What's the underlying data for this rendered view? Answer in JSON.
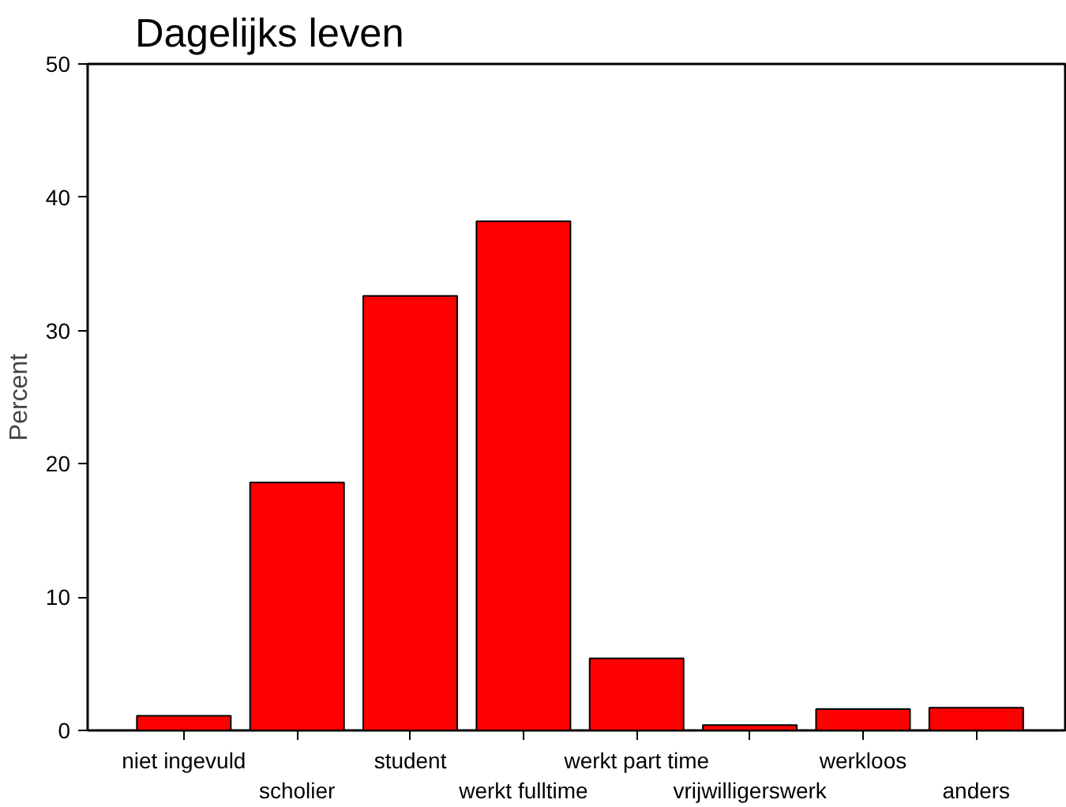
{
  "chart_data": {
    "type": "bar",
    "title": "Dagelijks leven",
    "ylabel": "Percent",
    "categories": [
      "niet ingevuld",
      "scholier",
      "student",
      "werkt fulltime",
      "werkt part time",
      "vrijwilligerswerk",
      "werkloos",
      "anders"
    ],
    "values": [
      1.1,
      18.6,
      32.6,
      38.2,
      5.4,
      0.4,
      1.6,
      1.7
    ],
    "color": "#ff0000",
    "ylim": [
      0,
      50
    ],
    "yticks": [
      0,
      10,
      20,
      30,
      40,
      50
    ],
    "grid": false
  }
}
